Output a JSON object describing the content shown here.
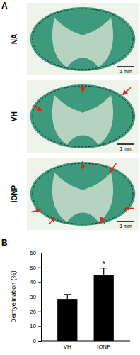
{
  "panel_a": {
    "label": "A",
    "images": [
      {
        "label": "NA",
        "scale_bar": "1 mm"
      },
      {
        "label": "VH",
        "scale_bar": "1 mm"
      },
      {
        "label": "IONP",
        "scale_bar": "1 mm"
      }
    ]
  },
  "panel_b": {
    "label": "B"
  },
  "chart_data": {
    "type": "bar",
    "y_label": "Demyelination (%)",
    "categories": [
      "VH",
      "IONP"
    ],
    "values": [
      28.5,
      44.5
    ],
    "errors": [
      3,
      5
    ],
    "color": "#000000",
    "ylim": [
      0,
      60
    ],
    "yticks": [
      0,
      10,
      20,
      30,
      40,
      50,
      60
    ],
    "annotations": [
      {
        "text": "*",
        "category": "IONP"
      }
    ]
  }
}
